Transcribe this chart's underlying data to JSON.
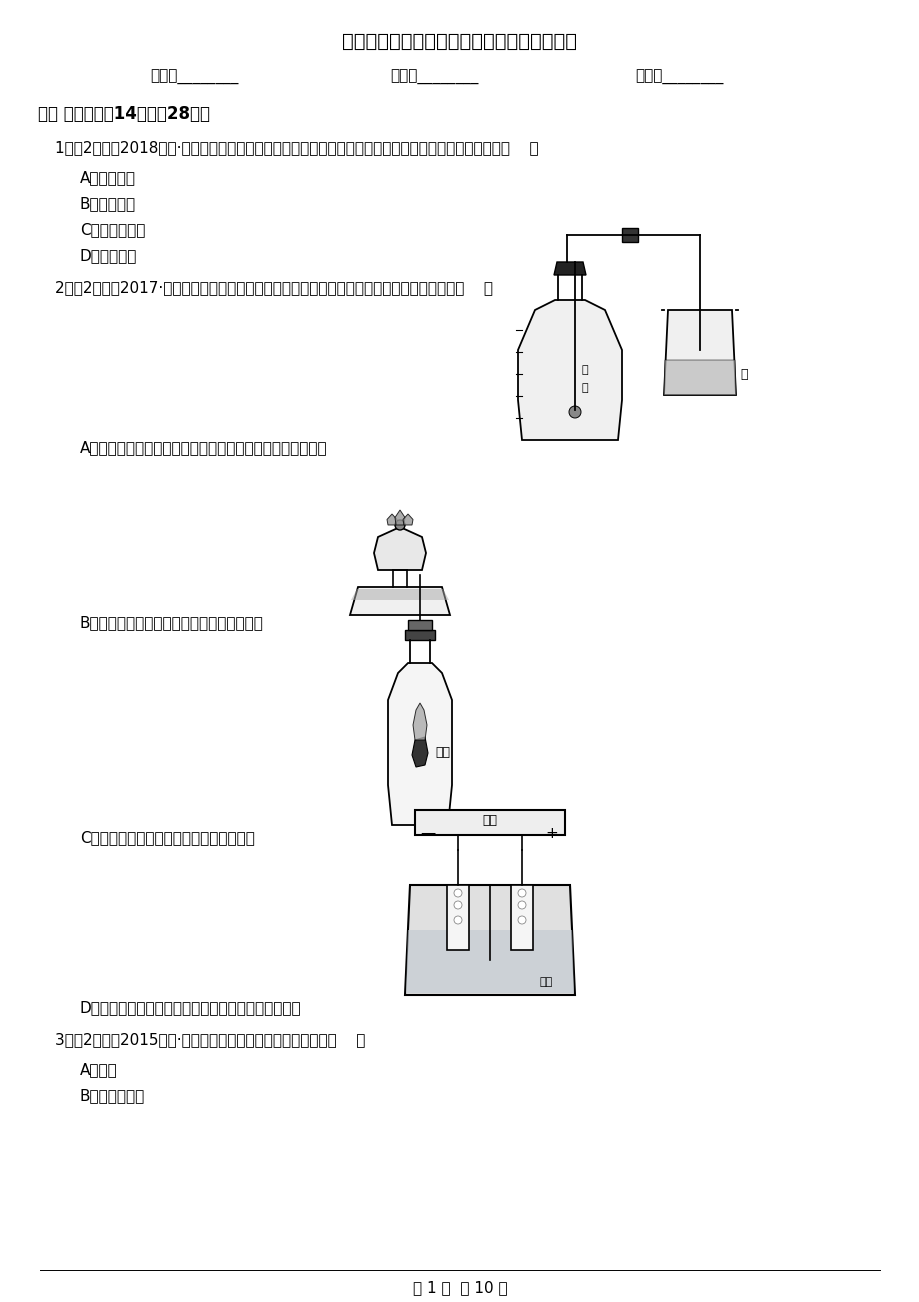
{
  "title": "烟台市龙口市九年级上学期化学期中考试试卷",
  "name_label": "姓名：________",
  "class_label": "班级：________",
  "score_label": "成绩：________",
  "section1": "一、 单选题（共14题；共28分）",
  "q1": "1．（2分）（2018九上·淮阴期中）日常生活中的下列变化，其中一种变化与其余三种变化类型不同的是（    ）",
  "q1a": "A．干冰升华",
  "q1b": "B．食品腐烂",
  "q1c": "C．铁杵磨成针",
  "q1d": "D．汽油挥发",
  "q2": "2．（2分）（2017·姑苏模拟）氧气是与人类关系密切的一种气体，下列有关说法不正确的是（    ）",
  "q2a": "A．测定空气中氧气含量，划刻度线之前可先在瓶底加少量水",
  "q2b": "B．用灯帽盖灭酒精灯，灭火原理是隔绝氧气",
  "q2c": "C．木炭在氧气中燃烧发出白光，放出热量",
  "q2d": "D．电解水实验中，电极上产生气体的快慢与电压无关",
  "q3": "3．（2分）（2015九上·株洲期末）下列物质属于混合物的是（    ）",
  "q3a": "A．氧气",
  "q3b": "B．五氧化二磷",
  "footer": "第 1 页  共 10 页",
  "bg_color": "#ffffff"
}
